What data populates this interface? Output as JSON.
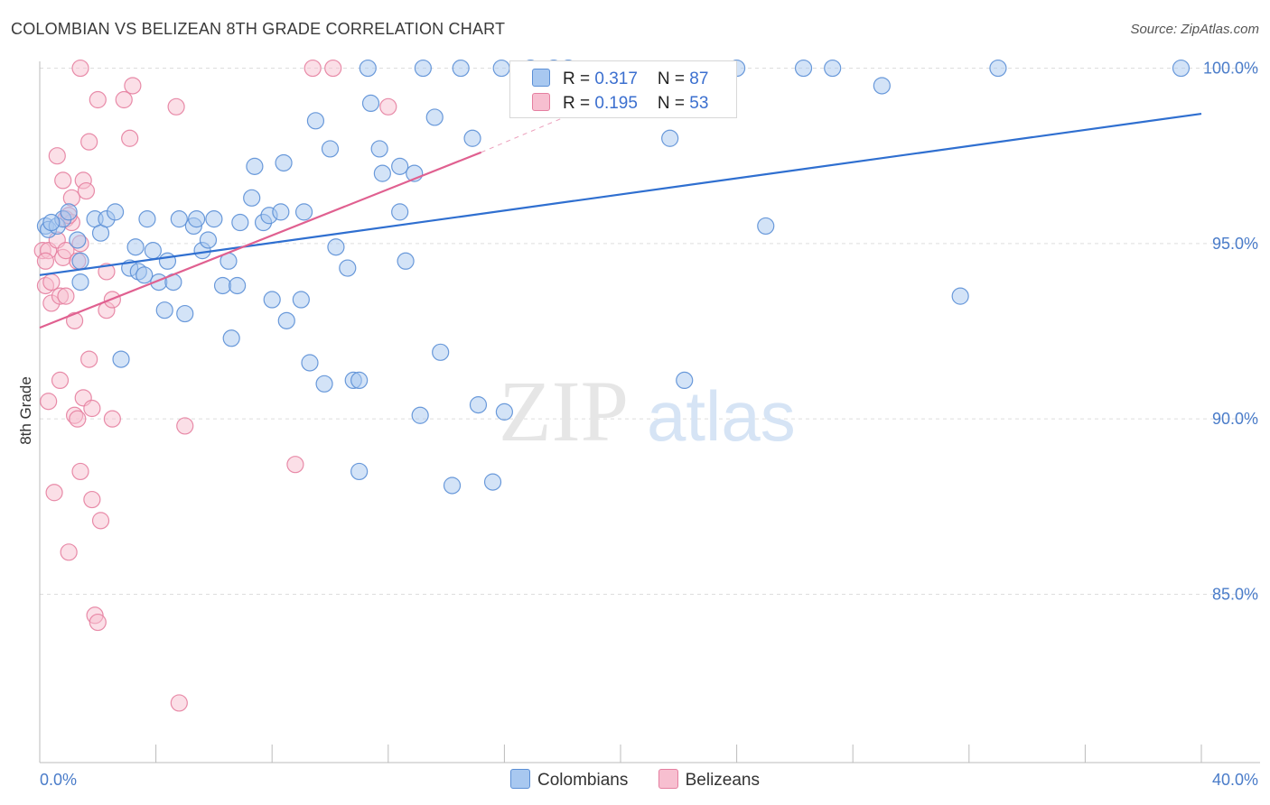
{
  "header": {
    "title": "COLOMBIAN VS BELIZEAN 8TH GRADE CORRELATION CHART",
    "source": "Source: ZipAtlas.com"
  },
  "watermark": {
    "zip": "ZIP",
    "atlas": "atlas"
  },
  "colors": {
    "blue_fill": "#a8c8f0",
    "blue_stroke": "#5b8fd6",
    "blue_line": "#2f6fd0",
    "pink_fill": "#f7bfd0",
    "pink_stroke": "#e57fa0",
    "pink_line": "#e06090",
    "axis_text": "#4a7cc9",
    "grid": "#dddddd"
  },
  "legend": {
    "rows": [
      {
        "r_label": "R = ",
        "r_value": "0.317",
        "n_label": "N = ",
        "n_value": "87"
      },
      {
        "r_label": "R = ",
        "r_value": "0.195",
        "n_label": "N = ",
        "n_value": "53"
      }
    ]
  },
  "chart_data": {
    "type": "scatter",
    "title": "COLOMBIAN VS BELIZEAN 8TH GRADE CORRELATION CHART",
    "xlabel": "",
    "ylabel": "8th Grade",
    "xlim": [
      0,
      40
    ],
    "ylim": [
      80.2,
      100.4
    ],
    "x_tick_labels": [
      "0.0%",
      "40.0%"
    ],
    "y_ticks": [
      85,
      90,
      95,
      100
    ],
    "y_tick_labels": [
      "85.0%",
      "90.0%",
      "95.0%",
      "100.0%"
    ],
    "grid": true,
    "legend_position": "bottom",
    "series": [
      {
        "name": "Colombians",
        "r": 0.317,
        "n": 87,
        "trend": {
          "x": [
            0,
            40
          ],
          "y": [
            94.1,
            98.7
          ]
        },
        "points": [
          [
            0.2,
            95.5
          ],
          [
            0.3,
            95.4
          ],
          [
            0.6,
            95.5
          ],
          [
            0.8,
            95.7
          ],
          [
            1.0,
            95.9
          ],
          [
            1.3,
            95.1
          ],
          [
            1.4,
            94.5
          ],
          [
            1.4,
            93.9
          ],
          [
            1.9,
            95.7
          ],
          [
            2.1,
            95.3
          ],
          [
            2.3,
            95.7
          ],
          [
            2.6,
            95.9
          ],
          [
            2.8,
            91.7
          ],
          [
            3.1,
            94.3
          ],
          [
            3.3,
            94.9
          ],
          [
            3.4,
            94.2
          ],
          [
            3.6,
            94.1
          ],
          [
            3.7,
            95.7
          ],
          [
            3.9,
            94.8
          ],
          [
            4.1,
            93.9
          ],
          [
            4.3,
            93.1
          ],
          [
            4.4,
            94.5
          ],
          [
            4.6,
            93.9
          ],
          [
            4.8,
            95.7
          ],
          [
            5.0,
            93.0
          ],
          [
            5.3,
            95.5
          ],
          [
            5.4,
            95.7
          ],
          [
            5.6,
            94.8
          ],
          [
            5.8,
            95.1
          ],
          [
            6.0,
            95.7
          ],
          [
            6.3,
            93.8
          ],
          [
            6.5,
            94.5
          ],
          [
            6.6,
            92.3
          ],
          [
            6.8,
            93.8
          ],
          [
            6.9,
            95.6
          ],
          [
            7.3,
            96.3
          ],
          [
            7.4,
            97.2
          ],
          [
            7.7,
            95.6
          ],
          [
            7.9,
            95.8
          ],
          [
            8.0,
            93.4
          ],
          [
            8.3,
            95.9
          ],
          [
            8.4,
            97.3
          ],
          [
            8.5,
            92.8
          ],
          [
            9.0,
            93.4
          ],
          [
            9.1,
            95.9
          ],
          [
            9.3,
            91.6
          ],
          [
            9.5,
            98.5
          ],
          [
            9.8,
            91.0
          ],
          [
            10.0,
            97.7
          ],
          [
            10.2,
            94.9
          ],
          [
            10.6,
            94.3
          ],
          [
            10.8,
            91.1
          ],
          [
            11.0,
            91.1
          ],
          [
            11.3,
            100.0
          ],
          [
            11.4,
            99.0
          ],
          [
            11.7,
            97.7
          ],
          [
            11.8,
            97.0
          ],
          [
            12.4,
            97.2
          ],
          [
            12.4,
            95.9
          ],
          [
            12.6,
            94.5
          ],
          [
            12.9,
            97.0
          ],
          [
            13.1,
            90.1
          ],
          [
            13.2,
            100.0
          ],
          [
            13.6,
            98.6
          ],
          [
            13.8,
            91.9
          ],
          [
            14.2,
            88.1
          ],
          [
            14.5,
            100.0
          ],
          [
            14.9,
            98.0
          ],
          [
            15.1,
            90.4
          ],
          [
            15.6,
            88.2
          ],
          [
            15.9,
            100.0
          ],
          [
            16.0,
            90.2
          ],
          [
            16.9,
            100.0
          ],
          [
            17.7,
            100.0
          ],
          [
            18.2,
            100.0
          ],
          [
            21.7,
            98.0
          ],
          [
            22.2,
            91.1
          ],
          [
            24.0,
            100.0
          ],
          [
            25.0,
            95.5
          ],
          [
            26.3,
            100.0
          ],
          [
            27.3,
            100.0
          ],
          [
            29.0,
            99.5
          ],
          [
            31.7,
            93.5
          ],
          [
            33.0,
            100.0
          ],
          [
            39.3,
            100.0
          ],
          [
            11.0,
            88.5
          ],
          [
            0.4,
            95.6
          ]
        ]
      },
      {
        "name": "Belizeans",
        "r": 0.195,
        "n": 53,
        "trend": {
          "x": [
            0,
            15.2
          ],
          "y": [
            92.6,
            97.6
          ]
        },
        "trend_dashed": {
          "x": [
            15.2,
            21.5
          ],
          "y": [
            97.6,
            99.8
          ]
        },
        "points": [
          [
            0.1,
            94.8
          ],
          [
            0.2,
            93.8
          ],
          [
            0.3,
            94.8
          ],
          [
            0.3,
            90.5
          ],
          [
            0.4,
            93.3
          ],
          [
            0.4,
            93.9
          ],
          [
            0.5,
            87.9
          ],
          [
            0.6,
            95.1
          ],
          [
            0.6,
            97.5
          ],
          [
            0.7,
            93.5
          ],
          [
            0.7,
            91.1
          ],
          [
            0.8,
            96.8
          ],
          [
            0.8,
            94.6
          ],
          [
            0.9,
            95.7
          ],
          [
            0.9,
            94.8
          ],
          [
            0.9,
            93.5
          ],
          [
            1.0,
            86.2
          ],
          [
            1.1,
            95.6
          ],
          [
            1.1,
            96.3
          ],
          [
            1.2,
            92.8
          ],
          [
            1.2,
            90.1
          ],
          [
            1.3,
            90.0
          ],
          [
            1.3,
            94.5
          ],
          [
            1.4,
            88.5
          ],
          [
            1.4,
            95.0
          ],
          [
            1.5,
            96.8
          ],
          [
            1.5,
            90.6
          ],
          [
            1.6,
            96.5
          ],
          [
            1.7,
            91.7
          ],
          [
            1.7,
            97.9
          ],
          [
            1.8,
            90.3
          ],
          [
            1.8,
            87.7
          ],
          [
            1.9,
            84.4
          ],
          [
            2.0,
            84.2
          ],
          [
            2.0,
            99.1
          ],
          [
            2.1,
            87.1
          ],
          [
            2.3,
            93.1
          ],
          [
            2.3,
            94.2
          ],
          [
            2.5,
            90.0
          ],
          [
            2.5,
            93.4
          ],
          [
            2.9,
            99.1
          ],
          [
            3.1,
            98.0
          ],
          [
            3.2,
            99.5
          ],
          [
            4.7,
            98.9
          ],
          [
            4.8,
            81.9
          ],
          [
            5.0,
            89.8
          ],
          [
            8.8,
            88.7
          ],
          [
            9.4,
            100.0
          ],
          [
            10.1,
            100.0
          ],
          [
            12.0,
            98.9
          ],
          [
            1.4,
            100.0
          ],
          [
            1.0,
            95.8
          ],
          [
            0.2,
            94.5
          ]
        ]
      }
    ]
  }
}
